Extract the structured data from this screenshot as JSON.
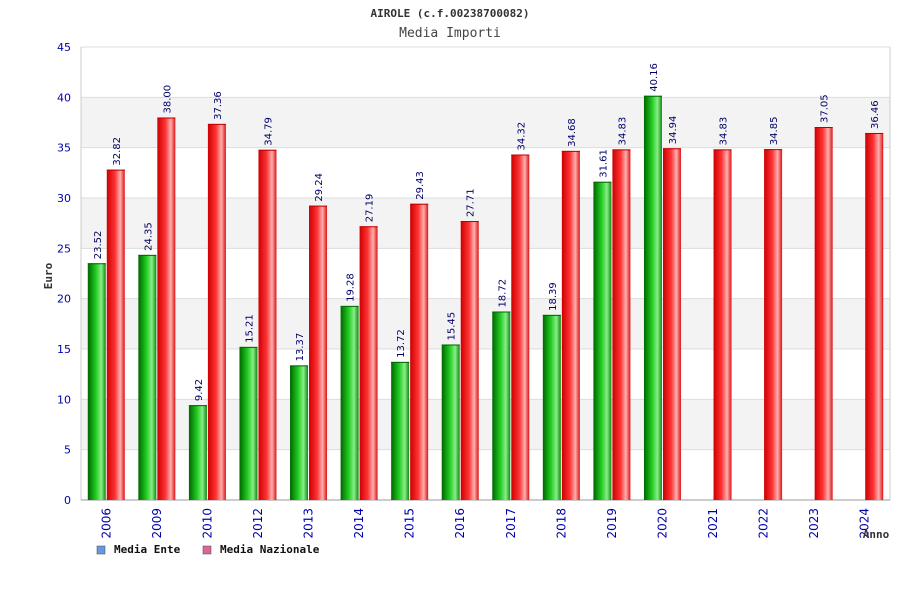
{
  "chart_data": {
    "type": "bar",
    "title": "AIROLE (c.f.00238700082)",
    "subtitle": "Media Importi",
    "xlabel": "Anno",
    "ylabel": "Euro",
    "ylim": [
      0,
      45
    ],
    "yticks": [
      "0",
      "5",
      "10",
      "15",
      "20",
      "25",
      "30",
      "35",
      "40",
      "45"
    ],
    "grid": true,
    "legend_position": "bottom-left",
    "categories": [
      "2006",
      "2009",
      "2010",
      "2012",
      "2013",
      "2014",
      "2015",
      "2016",
      "2017",
      "2018",
      "2019",
      "2020",
      "2021",
      "2022",
      "2023",
      "2024"
    ],
    "series": [
      {
        "name": "Media Ente",
        "color": "#22aa22",
        "legend_color": "#6699dd",
        "values": [
          23.52,
          24.35,
          9.42,
          15.21,
          13.37,
          19.28,
          13.72,
          15.45,
          18.72,
          18.39,
          31.61,
          40.16,
          null,
          null,
          null,
          null
        ],
        "labels": [
          "23.52",
          "24.35",
          "9.42",
          "15.21",
          "13.37",
          "19.28",
          "13.72",
          "15.45",
          "18.72",
          "18.39",
          "31.61",
          "40.16",
          "",
          "",
          "",
          ""
        ]
      },
      {
        "name": "Media Nazionale",
        "color": "#ee2222",
        "legend_color": "#dd6699",
        "values": [
          32.82,
          38.0,
          37.36,
          34.79,
          29.24,
          27.19,
          29.43,
          27.71,
          34.32,
          34.68,
          34.83,
          34.94,
          34.83,
          34.85,
          37.05,
          36.46
        ],
        "labels": [
          "32.82",
          "38.00",
          "37.36",
          "34.79",
          "29.24",
          "27.19",
          "29.43",
          "27.71",
          "34.32",
          "34.68",
          "34.83",
          "34.94",
          "34.83",
          "34.85",
          "37.05",
          "36.46"
        ]
      }
    ]
  }
}
